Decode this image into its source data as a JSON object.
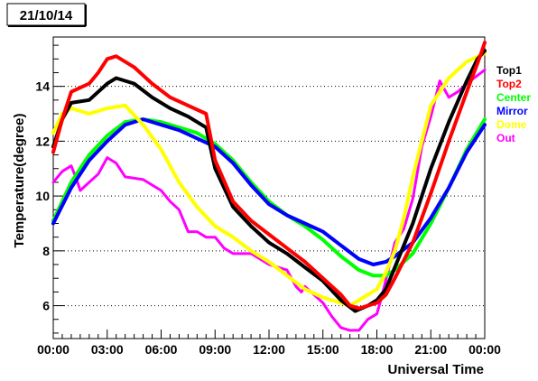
{
  "chart_data": {
    "type": "line",
    "date_label": "21/10/14",
    "xlabel": "Universal Time",
    "ylabel": "Temperature(degree)",
    "xlim": [
      0,
      24
    ],
    "ylim": [
      4.8,
      15.8
    ],
    "x_ticks": [
      {
        "value": 0,
        "label": "00:00"
      },
      {
        "value": 3,
        "label": "03:00"
      },
      {
        "value": 6,
        "label": "06:00"
      },
      {
        "value": 9,
        "label": "09:00"
      },
      {
        "value": 12,
        "label": "12:00"
      },
      {
        "value": 15,
        "label": "15:00"
      },
      {
        "value": 18,
        "label": "18:00"
      },
      {
        "value": 21,
        "label": "21:00"
      },
      {
        "value": 24,
        "label": "00:00"
      }
    ],
    "y_ticks": [
      {
        "value": 6,
        "label": "6"
      },
      {
        "value": 8,
        "label": "8"
      },
      {
        "value": 10,
        "label": "10"
      },
      {
        "value": 12,
        "label": "12"
      },
      {
        "value": 14,
        "label": "14"
      }
    ],
    "grid": "horizontal-dotted",
    "legend_position": "right",
    "series": [
      {
        "name": "Top1",
        "color": "#000000",
        "points": [
          [
            0,
            11.8
          ],
          [
            0.5,
            12.8
          ],
          [
            1,
            13.4
          ],
          [
            2,
            13.5
          ],
          [
            3,
            14.1
          ],
          [
            3.5,
            14.3
          ],
          [
            4.5,
            14.1
          ],
          [
            5.5,
            13.6
          ],
          [
            6.5,
            13.2
          ],
          [
            7.5,
            12.9
          ],
          [
            8.5,
            12.5
          ],
          [
            9,
            11.0
          ],
          [
            10,
            9.6
          ],
          [
            11,
            8.9
          ],
          [
            12,
            8.3
          ],
          [
            13,
            7.9
          ],
          [
            14,
            7.4
          ],
          [
            15,
            6.9
          ],
          [
            16,
            6.2
          ],
          [
            16.8,
            5.8
          ],
          [
            17.5,
            6.0
          ],
          [
            18,
            6.2
          ],
          [
            18.5,
            6.6
          ],
          [
            19,
            7.4
          ],
          [
            20,
            9.0
          ],
          [
            21,
            11.0
          ],
          [
            22,
            12.7
          ],
          [
            23,
            14.2
          ],
          [
            23.6,
            15.0
          ],
          [
            24,
            15.3
          ]
        ]
      },
      {
        "name": "Top2",
        "color": "#ff0000",
        "points": [
          [
            0,
            11.6
          ],
          [
            0.5,
            12.8
          ],
          [
            1,
            13.8
          ],
          [
            2,
            14.1
          ],
          [
            2.5,
            14.5
          ],
          [
            3,
            15.0
          ],
          [
            3.5,
            15.1
          ],
          [
            4.5,
            14.7
          ],
          [
            5.5,
            14.1
          ],
          [
            6.5,
            13.6
          ],
          [
            7.5,
            13.3
          ],
          [
            8.5,
            13.0
          ],
          [
            9,
            11.3
          ],
          [
            10,
            9.8
          ],
          [
            11,
            9.1
          ],
          [
            12,
            8.6
          ],
          [
            13,
            8.1
          ],
          [
            14,
            7.6
          ],
          [
            15,
            7.0
          ],
          [
            16,
            6.4
          ],
          [
            16.5,
            6.0
          ],
          [
            17,
            5.9
          ],
          [
            18,
            6.1
          ],
          [
            18.5,
            6.4
          ],
          [
            19,
            7.0
          ],
          [
            20,
            8.3
          ],
          [
            21,
            10.1
          ],
          [
            22,
            12.0
          ],
          [
            23,
            13.8
          ],
          [
            23.8,
            15.2
          ],
          [
            24,
            15.6
          ]
        ]
      },
      {
        "name": "Center",
        "color": "#00ff00",
        "points": [
          [
            0,
            9.1
          ],
          [
            1,
            10.5
          ],
          [
            2,
            11.5
          ],
          [
            3,
            12.2
          ],
          [
            4,
            12.7
          ],
          [
            5,
            12.8
          ],
          [
            6,
            12.7
          ],
          [
            7,
            12.5
          ],
          [
            8,
            12.3
          ],
          [
            9,
            11.9
          ],
          [
            10,
            11.3
          ],
          [
            11,
            10.5
          ],
          [
            12,
            9.8
          ],
          [
            13,
            9.3
          ],
          [
            14,
            8.9
          ],
          [
            15,
            8.4
          ],
          [
            16,
            7.8
          ],
          [
            17,
            7.3
          ],
          [
            17.8,
            7.1
          ],
          [
            18.5,
            7.1
          ],
          [
            19,
            7.3
          ],
          [
            20,
            7.9
          ],
          [
            21,
            9.0
          ],
          [
            22,
            10.3
          ],
          [
            23,
            11.7
          ],
          [
            24,
            12.8
          ]
        ]
      },
      {
        "name": "Mirror",
        "color": "#0000ff",
        "points": [
          [
            0,
            9.0
          ],
          [
            1,
            10.3
          ],
          [
            2,
            11.3
          ],
          [
            3,
            12.0
          ],
          [
            4,
            12.6
          ],
          [
            5,
            12.8
          ],
          [
            6,
            12.6
          ],
          [
            7,
            12.4
          ],
          [
            8,
            12.1
          ],
          [
            9,
            11.8
          ],
          [
            10,
            11.2
          ],
          [
            11,
            10.4
          ],
          [
            12,
            9.7
          ],
          [
            13,
            9.3
          ],
          [
            14,
            9.0
          ],
          [
            15,
            8.7
          ],
          [
            16,
            8.2
          ],
          [
            17,
            7.7
          ],
          [
            17.8,
            7.5
          ],
          [
            18.5,
            7.6
          ],
          [
            19,
            7.8
          ],
          [
            20,
            8.3
          ],
          [
            21,
            9.2
          ],
          [
            22,
            10.3
          ],
          [
            23,
            11.6
          ],
          [
            24,
            12.6
          ]
        ]
      },
      {
        "name": "Dome",
        "color": "#ffff00",
        "points": [
          [
            0,
            12.3
          ],
          [
            0.5,
            13.0
          ],
          [
            1,
            13.2
          ],
          [
            2,
            13.0
          ],
          [
            3,
            13.2
          ],
          [
            4,
            13.3
          ],
          [
            5,
            12.6
          ],
          [
            6,
            11.7
          ],
          [
            7,
            10.5
          ],
          [
            8,
            9.6
          ],
          [
            9,
            8.9
          ],
          [
            10,
            8.5
          ],
          [
            11,
            8.0
          ],
          [
            12,
            7.6
          ],
          [
            13,
            7.1
          ],
          [
            14,
            6.6
          ],
          [
            15,
            6.3
          ],
          [
            16,
            6.1
          ],
          [
            16.5,
            6.0
          ],
          [
            17,
            6.2
          ],
          [
            18,
            6.6
          ],
          [
            18.5,
            7.2
          ],
          [
            19,
            8.0
          ],
          [
            19.5,
            9.2
          ],
          [
            20,
            10.7
          ],
          [
            20.5,
            12.0
          ],
          [
            21,
            13.3
          ],
          [
            22,
            14.3
          ],
          [
            23,
            14.9
          ],
          [
            24,
            15.2
          ]
        ]
      },
      {
        "name": "Out",
        "color": "#ff00ff",
        "points": [
          [
            0,
            10.5
          ],
          [
            0.5,
            10.9
          ],
          [
            1,
            11.1
          ],
          [
            1.3,
            10.6
          ],
          [
            1.5,
            10.2
          ],
          [
            2,
            10.5
          ],
          [
            2.5,
            10.8
          ],
          [
            3,
            11.4
          ],
          [
            3.5,
            11.2
          ],
          [
            4,
            10.7
          ],
          [
            5,
            10.6
          ],
          [
            6,
            10.2
          ],
          [
            6.5,
            9.8
          ],
          [
            7,
            9.5
          ],
          [
            7.5,
            8.7
          ],
          [
            8,
            8.7
          ],
          [
            8.5,
            8.5
          ],
          [
            9,
            8.5
          ],
          [
            9.5,
            8.1
          ],
          [
            10,
            7.9
          ],
          [
            11,
            7.9
          ],
          [
            12,
            7.5
          ],
          [
            13,
            7.3
          ],
          [
            13.5,
            6.7
          ],
          [
            13.8,
            6.5
          ],
          [
            14,
            6.7
          ],
          [
            14.5,
            6.4
          ],
          [
            15,
            6.1
          ],
          [
            15.5,
            5.6
          ],
          [
            16,
            5.2
          ],
          [
            16.5,
            5.1
          ],
          [
            17,
            5.1
          ],
          [
            17.5,
            5.5
          ],
          [
            18,
            5.7
          ],
          [
            18.3,
            6.4
          ],
          [
            18.6,
            7.2
          ],
          [
            19,
            8.3
          ],
          [
            19.5,
            8.8
          ],
          [
            20,
            9.9
          ],
          [
            20.5,
            11.8
          ],
          [
            21,
            12.9
          ],
          [
            21.5,
            14.2
          ],
          [
            22,
            13.6
          ],
          [
            22.5,
            13.8
          ],
          [
            23,
            14.1
          ],
          [
            24,
            14.6
          ]
        ]
      }
    ]
  }
}
